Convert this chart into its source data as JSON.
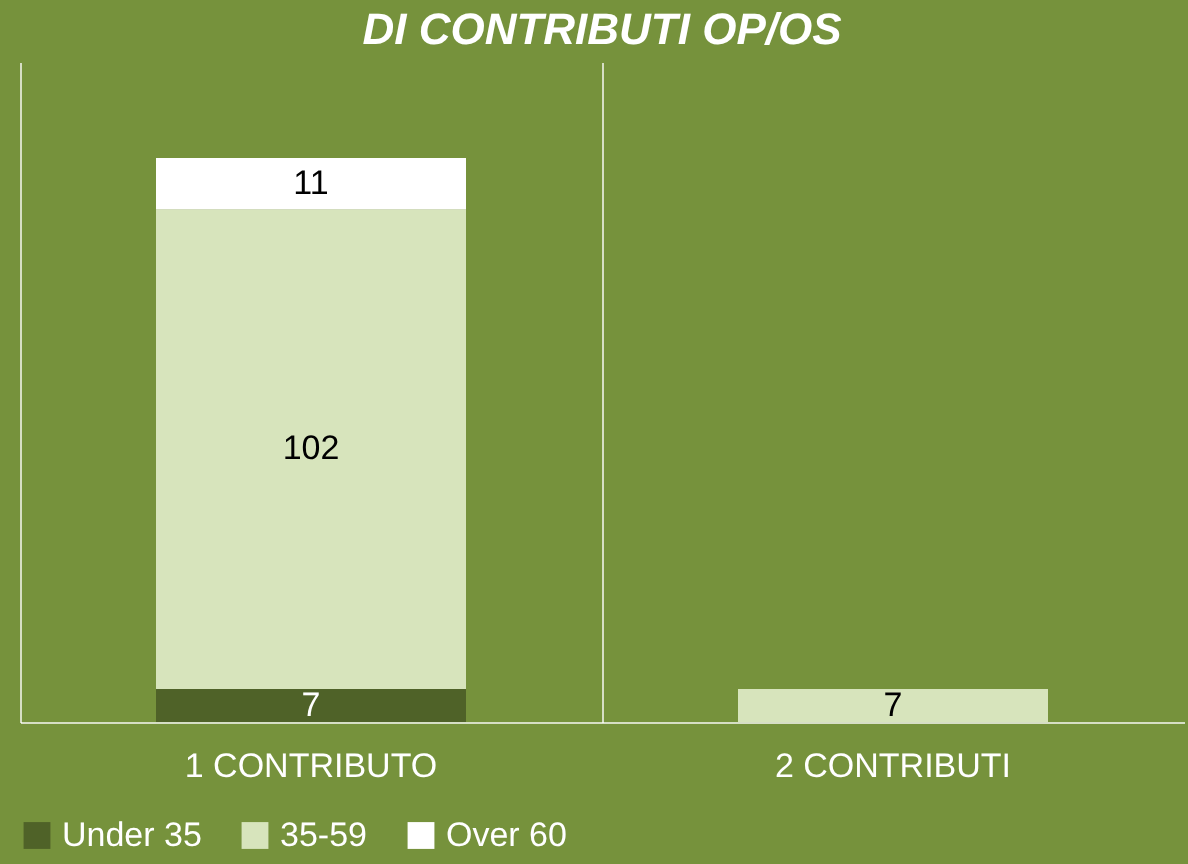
{
  "chart_data": {
    "type": "bar",
    "title": "DI CONTRIBUTI OP/OS",
    "categories": [
      "1 CONTRIBUTO",
      "2 CONTRIBUTI"
    ],
    "stacked": true,
    "data_labels": true,
    "grid": "x",
    "legend": "bottom",
    "series": [
      {
        "name": "Under 35",
        "color": "#4f6228",
        "values": [
          7,
          null
        ]
      },
      {
        "name": "35-59",
        "color": "#d7e4bc",
        "values": [
          102,
          7
        ]
      },
      {
        "name": "Over 60",
        "color": "#ffffff",
        "values": [
          11,
          null
        ]
      }
    ]
  }
}
